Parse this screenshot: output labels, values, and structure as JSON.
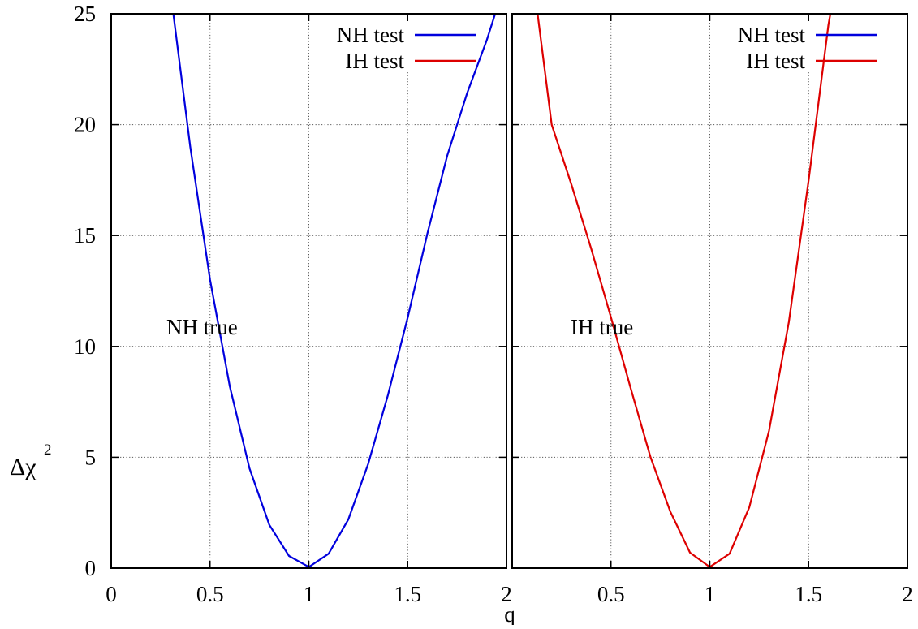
{
  "chart_data": [
    {
      "type": "line",
      "panel": "left",
      "annotation": "NH true",
      "xlabel": "q",
      "ylabel_main": "Δχ",
      "ylabel_sup": "2",
      "xlim": [
        0,
        2
      ],
      "ylim": [
        0,
        25
      ],
      "xticks": [
        "0",
        "0.5",
        "1",
        "1.5",
        "2"
      ],
      "yticks": [
        "0",
        "5",
        "10",
        "15",
        "20",
        "25"
      ],
      "grid": true,
      "legend_position": "top-right",
      "legend": [
        {
          "label": "NH test",
          "color": "#0000dd"
        },
        {
          "label": "IH test",
          "color": "#dd0000"
        }
      ],
      "series": [
        {
          "name": "NH test",
          "color": "#0000dd",
          "x": [
            0.3,
            0.4,
            0.5,
            0.6,
            0.7,
            0.8,
            0.9,
            1.0,
            1.1,
            1.2,
            1.3,
            1.4,
            1.5,
            1.6,
            1.7,
            1.8,
            1.9,
            1.95
          ],
          "y": [
            26,
            19.0,
            13.0,
            8.2,
            4.5,
            1.95,
            0.55,
            0.05,
            0.65,
            2.2,
            4.7,
            7.8,
            11.3,
            15.1,
            18.6,
            21.4,
            23.8,
            25.2
          ]
        }
      ]
    },
    {
      "type": "line",
      "panel": "right",
      "annotation": "IH true",
      "xlim": [
        0,
        2
      ],
      "ylim": [
        0,
        25
      ],
      "xticks": [
        "0.5",
        "1",
        "1.5",
        "2"
      ],
      "grid": true,
      "legend_position": "top-right",
      "legend": [
        {
          "label": "NH test",
          "color": "#0000dd"
        },
        {
          "label": "IH test",
          "color": "#dd0000"
        }
      ],
      "series": [
        {
          "name": "IH test",
          "color": "#dd0000",
          "x": [
            0.1,
            0.2,
            0.3,
            0.4,
            0.5,
            0.6,
            0.7,
            0.8,
            0.9,
            1.0,
            1.1,
            1.2,
            1.3,
            1.4,
            1.5,
            1.6,
            1.62
          ],
          "y": [
            27,
            20.0,
            17.3,
            14.4,
            11.3,
            8.1,
            5.0,
            2.55,
            0.7,
            0.05,
            0.65,
            2.75,
            6.2,
            11.1,
            17.5,
            24.5,
            25.5
          ]
        }
      ]
    }
  ]
}
